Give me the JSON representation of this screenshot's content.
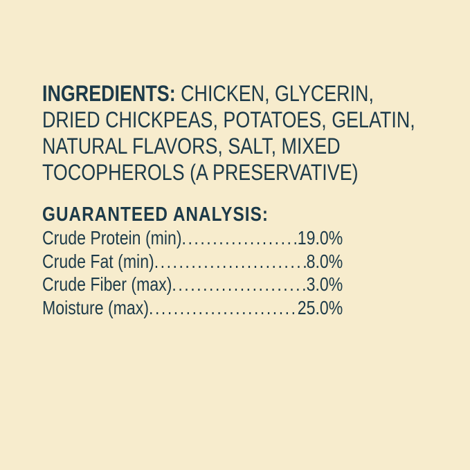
{
  "colors": {
    "background": "#F7ECCD",
    "text": "#1C3A49"
  },
  "ingredients": {
    "heading": "INGREDIENTS:",
    "line_1_rest": "CHICKEN, GLYCERIN,",
    "line_2": "DRIED CHICKPEAS, POTATOES, GELATIN,",
    "line_3": "NATURAL FLAVORS, SALT, MIXED",
    "line_4": "TOCOPHEROLS (A PRESERVATIVE)"
  },
  "guaranteed_analysis": {
    "heading": "GUARANTEED ANALYSIS:",
    "rows": [
      {
        "label": "Crude Protein (min)",
        "value": "19.0%"
      },
      {
        "label": "Crude Fat (min)",
        "value": "8.0%"
      },
      {
        "label": "Crude Fiber (max)",
        "value": "3.0%"
      },
      {
        "label": "Moisture (max)",
        "value": "25.0%"
      }
    ],
    "leader_dots": "..............................................................................................."
  }
}
